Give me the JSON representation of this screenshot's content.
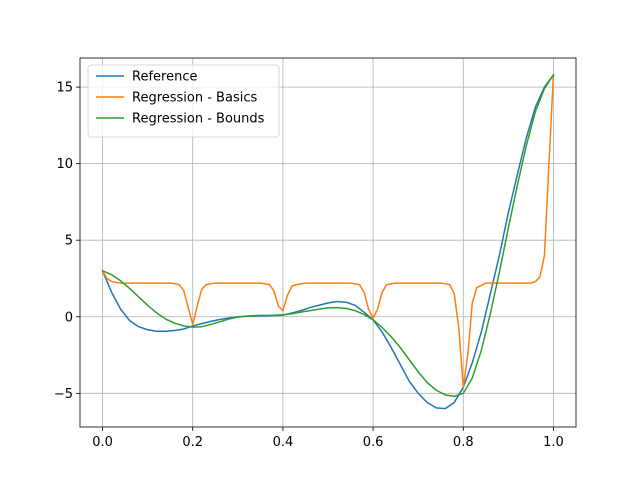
{
  "chart_data": {
    "type": "line",
    "title": "",
    "xlabel": "",
    "ylabel": "",
    "xlim": [
      -0.05,
      1.05
    ],
    "ylim": [
      -7.2,
      16.9
    ],
    "grid": true,
    "legend_position": "top-left",
    "x_ticks": [
      0.0,
      0.2,
      0.4,
      0.6,
      0.8,
      1.0
    ],
    "x_tick_labels": [
      "0.0",
      "0.2",
      "0.4",
      "0.6",
      "0.8",
      "1.0"
    ],
    "y_ticks": [
      -5,
      0,
      5,
      10,
      15
    ],
    "y_tick_labels": [
      "−5",
      "0",
      "5",
      "10",
      "15"
    ],
    "series": [
      {
        "name": "Reference",
        "color": "#1f77b4",
        "x": [
          0.0,
          0.02,
          0.04,
          0.06,
          0.08,
          0.1,
          0.12,
          0.14,
          0.16,
          0.18,
          0.2,
          0.22,
          0.24,
          0.26,
          0.28,
          0.3,
          0.32,
          0.34,
          0.36,
          0.38,
          0.4,
          0.42,
          0.44,
          0.46,
          0.48,
          0.5,
          0.52,
          0.54,
          0.56,
          0.58,
          0.6,
          0.62,
          0.64,
          0.66,
          0.68,
          0.7,
          0.72,
          0.74,
          0.76,
          0.78,
          0.8,
          0.82,
          0.84,
          0.86,
          0.88,
          0.9,
          0.92,
          0.94,
          0.96,
          0.98,
          1.0
        ],
        "y": [
          3.0,
          1.6,
          0.5,
          -0.25,
          -0.65,
          -0.85,
          -0.95,
          -0.95,
          -0.9,
          -0.8,
          -0.6,
          -0.45,
          -0.3,
          -0.18,
          -0.08,
          0.0,
          0.03,
          0.05,
          0.07,
          0.08,
          0.1,
          0.25,
          0.4,
          0.6,
          0.75,
          0.9,
          1.0,
          0.95,
          0.75,
          0.3,
          -0.2,
          -1.0,
          -2.0,
          -3.1,
          -4.2,
          -5.0,
          -5.6,
          -5.95,
          -6.0,
          -5.6,
          -4.6,
          -3.0,
          -1.0,
          1.5,
          4.0,
          6.8,
          9.3,
          11.7,
          13.7,
          15.0,
          15.8
        ]
      },
      {
        "name": "Regression - Basics",
        "color": "#ff7f0e",
        "x": [
          0.0,
          0.01,
          0.02,
          0.04,
          0.1,
          0.15,
          0.17,
          0.18,
          0.19,
          0.2,
          0.21,
          0.22,
          0.23,
          0.25,
          0.3,
          0.35,
          0.37,
          0.38,
          0.39,
          0.4,
          0.41,
          0.42,
          0.43,
          0.45,
          0.5,
          0.55,
          0.57,
          0.58,
          0.59,
          0.6,
          0.61,
          0.62,
          0.63,
          0.65,
          0.7,
          0.75,
          0.77,
          0.78,
          0.79,
          0.8,
          0.81,
          0.82,
          0.83,
          0.85,
          0.9,
          0.95,
          0.96,
          0.97,
          0.98,
          0.99,
          1.0
        ],
        "y": [
          3.0,
          2.5,
          2.3,
          2.2,
          2.2,
          2.2,
          2.1,
          1.7,
          0.6,
          -0.5,
          0.7,
          1.8,
          2.1,
          2.2,
          2.2,
          2.2,
          2.1,
          1.7,
          0.7,
          0.4,
          1.4,
          2.0,
          2.1,
          2.2,
          2.2,
          2.2,
          2.1,
          1.6,
          0.5,
          -0.1,
          0.5,
          1.6,
          2.1,
          2.2,
          2.2,
          2.2,
          2.1,
          1.5,
          -0.7,
          -4.6,
          -2.5,
          0.9,
          1.9,
          2.2,
          2.2,
          2.2,
          2.3,
          2.6,
          4.0,
          10.0,
          15.8
        ]
      },
      {
        "name": "Regression - Bounds",
        "color": "#2ca02c",
        "x": [
          0.0,
          0.02,
          0.04,
          0.06,
          0.08,
          0.1,
          0.12,
          0.14,
          0.16,
          0.18,
          0.2,
          0.22,
          0.24,
          0.26,
          0.28,
          0.3,
          0.32,
          0.34,
          0.36,
          0.38,
          0.4,
          0.42,
          0.44,
          0.46,
          0.48,
          0.5,
          0.52,
          0.54,
          0.56,
          0.58,
          0.6,
          0.62,
          0.64,
          0.66,
          0.68,
          0.7,
          0.72,
          0.74,
          0.76,
          0.78,
          0.8,
          0.82,
          0.84,
          0.86,
          0.88,
          0.9,
          0.92,
          0.94,
          0.96,
          0.98,
          1.0
        ],
        "y": [
          3.0,
          2.75,
          2.35,
          1.85,
          1.3,
          0.75,
          0.25,
          -0.15,
          -0.42,
          -0.6,
          -0.68,
          -0.65,
          -0.5,
          -0.33,
          -0.15,
          -0.02,
          0.05,
          0.08,
          0.09,
          0.1,
          0.13,
          0.2,
          0.3,
          0.4,
          0.5,
          0.58,
          0.6,
          0.55,
          0.4,
          0.15,
          -0.2,
          -0.7,
          -1.3,
          -2.0,
          -2.8,
          -3.6,
          -4.3,
          -4.8,
          -5.1,
          -5.2,
          -5.0,
          -4.0,
          -2.2,
          0.2,
          2.9,
          5.8,
          8.6,
          11.2,
          13.4,
          14.9,
          15.8
        ]
      }
    ]
  }
}
